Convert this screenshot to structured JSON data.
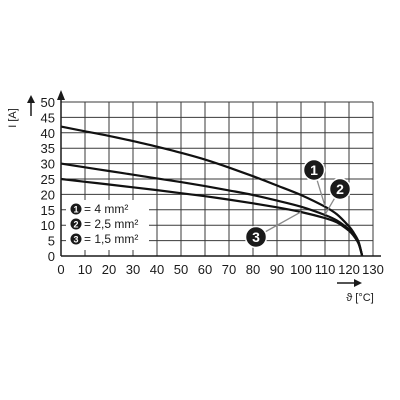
{
  "chart_data": {
    "type": "line",
    "title": "",
    "xlabel": "ϑ [°C]",
    "ylabel": "I [A]",
    "xlim": [
      0,
      130
    ],
    "ylim": [
      0,
      50
    ],
    "xticks": [
      0,
      10,
      20,
      30,
      40,
      50,
      60,
      70,
      80,
      90,
      100,
      110,
      120,
      130
    ],
    "yticks": [
      0,
      5,
      10,
      15,
      20,
      25,
      30,
      35,
      40,
      45,
      50
    ],
    "grid": true,
    "legend_position": "bottom-left",
    "series": [
      {
        "marker": "1",
        "label": "= 4 mm²",
        "points": [
          [
            0,
            42
          ],
          [
            10,
            40.5
          ],
          [
            20,
            39
          ],
          [
            30,
            37.3
          ],
          [
            40,
            35.5
          ],
          [
            50,
            33.5
          ],
          [
            60,
            31.3
          ],
          [
            70,
            28.7
          ],
          [
            80,
            25.9
          ],
          [
            90,
            22.9
          ],
          [
            100,
            19.8
          ],
          [
            110,
            16
          ],
          [
            115,
            13.5
          ],
          [
            120,
            9.6
          ],
          [
            122,
            7.5
          ],
          [
            124,
            4.6
          ],
          [
            125.5,
            0
          ]
        ]
      },
      {
        "marker": "2",
        "label": "= 2,5 mm²",
        "points": [
          [
            0,
            30
          ],
          [
            10,
            28.8
          ],
          [
            20,
            27.6
          ],
          [
            30,
            26.4
          ],
          [
            40,
            25.2
          ],
          [
            50,
            24
          ],
          [
            60,
            22.7
          ],
          [
            70,
            21.3
          ],
          [
            80,
            19.8
          ],
          [
            90,
            18
          ],
          [
            100,
            16
          ],
          [
            110,
            13.3
          ],
          [
            115,
            11.5
          ],
          [
            120,
            8.6
          ],
          [
            122,
            6.8
          ],
          [
            124,
            4.2
          ],
          [
            125.5,
            0
          ]
        ]
      },
      {
        "marker": "3",
        "label": "= 1,5 mm²",
        "points": [
          [
            0,
            25
          ],
          [
            10,
            24.1
          ],
          [
            20,
            23.2
          ],
          [
            30,
            22.3
          ],
          [
            40,
            21.4
          ],
          [
            50,
            20.4
          ],
          [
            60,
            19.4
          ],
          [
            70,
            18.3
          ],
          [
            80,
            17.1
          ],
          [
            90,
            15.8
          ],
          [
            100,
            14.3
          ],
          [
            110,
            12.3
          ],
          [
            115,
            10.9
          ],
          [
            120,
            8.2
          ],
          [
            122,
            6.5
          ],
          [
            124,
            4
          ],
          [
            125.5,
            0
          ]
        ]
      }
    ],
    "callouts": [
      {
        "marker": "1",
        "point_to": [
          110,
          16.2
        ]
      },
      {
        "marker": "2",
        "point_to": [
          110,
          13.4
        ]
      },
      {
        "marker": "3",
        "point_to": [
          100,
          14.3
        ]
      }
    ]
  }
}
